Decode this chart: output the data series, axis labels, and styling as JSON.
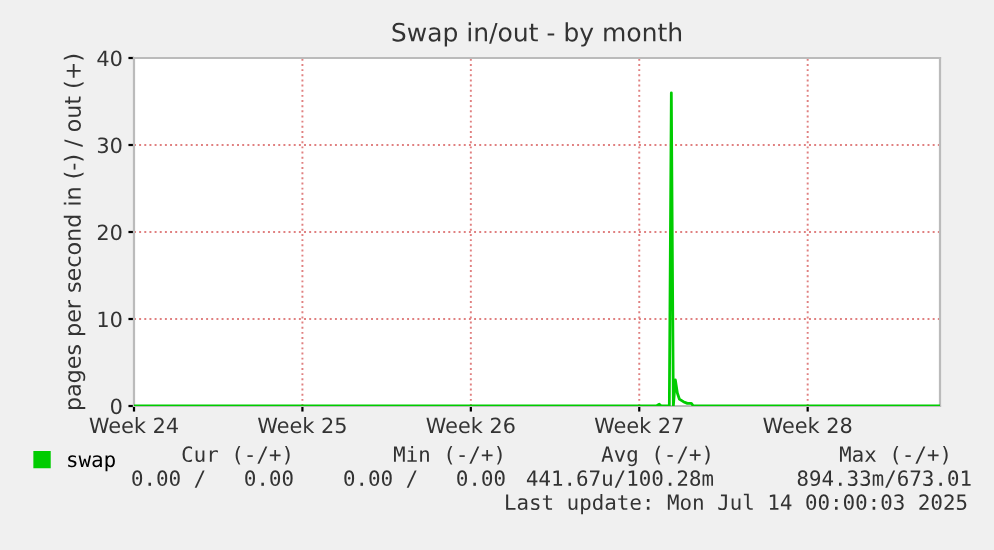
{
  "chart_data": {
    "type": "line",
    "title": "Swap in/out - by month",
    "ylabel": "pages per second in (-) / out (+)",
    "xlim": [
      "2025-06-09",
      "2025-07-12T12:00"
    ],
    "xticks": [
      {
        "value": "2025-06-09",
        "label": "Week 24"
      },
      {
        "value": "2025-06-16",
        "label": "Week 25"
      },
      {
        "value": "2025-06-23",
        "label": "Week 26"
      },
      {
        "value": "2025-06-30",
        "label": "Week 27"
      },
      {
        "value": "2025-07-07",
        "label": "Week 28"
      }
    ],
    "ylim": [
      0,
      40
    ],
    "yticks": [
      0,
      10,
      20,
      30,
      40
    ],
    "grid": true,
    "legend": "bottom left",
    "marker": "none",
    "line_style": "solid",
    "series": [
      {
        "name": "swap",
        "color": "#00cc00",
        "x": [
          "2025-06-09",
          "2025-06-30T17:00",
          "2025-06-30T20:00",
          "2025-06-30T22:00",
          "2025-07-01T06:00",
          "2025-07-01T08:00",
          "2025-07-01T10:00",
          "2025-07-01T12:00",
          "2025-07-01T14:00",
          "2025-07-01T16:00",
          "2025-07-01T20:00",
          "2025-07-02T00:00",
          "2025-07-02T04:00",
          "2025-07-02T06:00",
          "2025-07-12T12:00"
        ],
        "values": [
          0,
          0,
          0.2,
          0,
          0,
          36,
          0,
          3,
          1.5,
          0.8,
          0.5,
          0.3,
          0.3,
          0,
          0
        ]
      }
    ],
    "annotations": [
      "Cur (-/+)",
      "Min (-/+)",
      "Avg (-/+)",
      "Max (-/+)",
      "0.00 /   0.00",
      "0.00 /   0.00",
      "441.67u/100.28m",
      "894.33m/673.01",
      "Last update: Mon Jul 14 00:00:03 2025"
    ]
  }
}
